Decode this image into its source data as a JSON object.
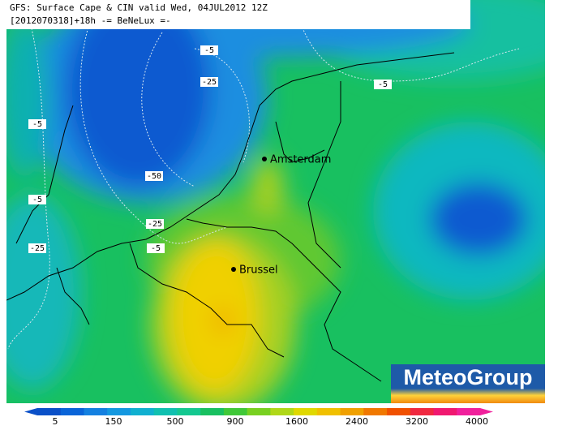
{
  "header": {
    "title": "GFS: Surface Cape & CIN valid Wed, 04JUL2012 12Z",
    "subtitle": "[2012070318]+18h -= BeNeLux =-"
  },
  "cities": [
    {
      "label": "Amsterdam"
    },
    {
      "label": "Brussel"
    }
  ],
  "contour_labels": [
    "-5",
    "-25",
    "-5",
    "-5",
    "-50",
    "-5",
    "-25",
    "-5",
    "-25"
  ],
  "colorbar": {
    "ticks": [
      "5",
      "150",
      "500",
      "900",
      "1600",
      "2400",
      "3200",
      "4000"
    ]
  },
  "logo": {
    "text": "MeteoGroup"
  }
}
